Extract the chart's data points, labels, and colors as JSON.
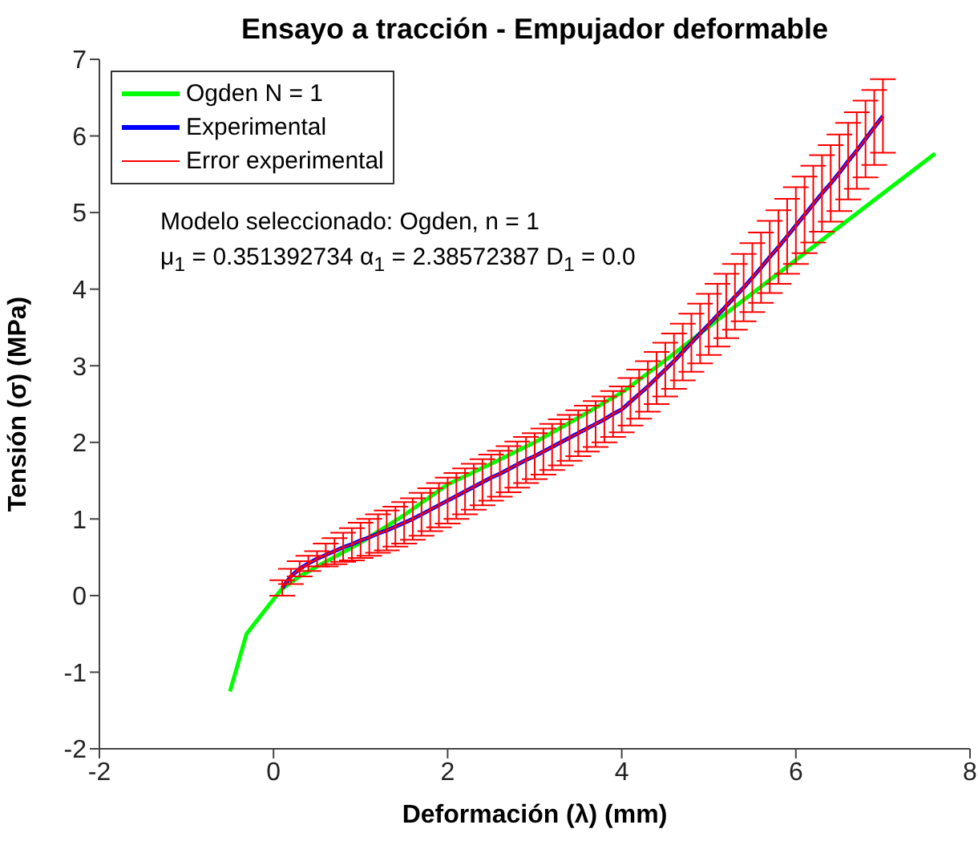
{
  "chart_data": {
    "type": "line",
    "title": "Ensayo a tracción - Empujador deformable",
    "xlabel": "Deformación (λ) (mm)",
    "ylabel": "Tensión (σ) (MPa)",
    "xlim": [
      -2,
      8
    ],
    "xticks": [
      -2,
      0,
      2,
      4,
      6,
      8
    ],
    "ylim": [
      -2,
      7
    ],
    "yticks": [
      -2,
      -1,
      0,
      1,
      2,
      3,
      4,
      5,
      6,
      7
    ],
    "grid": false,
    "legend": "top left",
    "marker": "none",
    "line_style": "solid",
    "annotations": [
      "Modelo seleccionado: Ogden, n = 1",
      "μ$_{1}$ = 0.351392734 α$_{1}$ = 2.38572387 D$_{1}$ = 0.0"
    ],
    "series": [
      {
        "name": "Ogden N = 1",
        "color": "#00ff00",
        "x": [
          -0.5,
          -0.31,
          -0.07,
          0.09,
          0.3,
          0.5,
          1,
          1.5,
          2,
          2.5,
          3,
          3.5,
          4,
          4.5,
          5,
          6,
          7,
          7.6
        ],
        "values": [
          -1.25,
          -0.5,
          -0.15,
          0.08,
          0.25,
          0.38,
          0.69,
          1.05,
          1.45,
          1.72,
          2.0,
          2.32,
          2.65,
          3.07,
          3.51,
          4.38,
          5.25,
          5.77
        ]
      },
      {
        "name": "Experimental",
        "color": "#0000ff",
        "x": [
          0.1,
          0.2,
          0.3,
          0.4,
          0.5,
          0.6,
          0.7,
          0.8,
          0.9,
          1.0,
          1.1,
          1.2,
          1.3,
          1.4,
          1.5,
          1.6,
          1.7,
          1.8,
          1.9,
          2.0,
          2.1,
          2.2,
          2.3,
          2.4,
          2.5,
          2.6,
          2.7,
          2.8,
          2.9,
          3.0,
          3.1,
          3.2,
          3.3,
          3.4,
          3.5,
          3.6,
          3.7,
          3.8,
          3.9,
          4.0,
          4.1,
          4.2,
          4.3,
          4.4,
          4.5,
          4.6,
          4.7,
          4.8,
          4.9,
          5.0,
          5.1,
          5.2,
          5.3,
          5.4,
          5.5,
          5.6,
          5.7,
          5.8,
          5.9,
          6.0,
          6.1,
          6.2,
          6.3,
          6.4,
          6.5,
          6.6,
          6.7,
          6.8,
          6.9,
          7.0
        ],
        "values": [
          0.1,
          0.25,
          0.35,
          0.42,
          0.48,
          0.53,
          0.58,
          0.63,
          0.67,
          0.72,
          0.76,
          0.81,
          0.85,
          0.9,
          0.95,
          1.0,
          1.06,
          1.12,
          1.18,
          1.24,
          1.3,
          1.36,
          1.42,
          1.48,
          1.54,
          1.59,
          1.65,
          1.71,
          1.77,
          1.82,
          1.88,
          1.94,
          2.0,
          2.06,
          2.12,
          2.18,
          2.24,
          2.3,
          2.37,
          2.43,
          2.53,
          2.63,
          2.73,
          2.84,
          2.95,
          3.06,
          3.18,
          3.3,
          3.42,
          3.54,
          3.66,
          3.78,
          3.9,
          4.02,
          4.15,
          4.28,
          4.42,
          4.55,
          4.69,
          4.83,
          4.97,
          5.11,
          5.25,
          5.38,
          5.52,
          5.67,
          5.81,
          5.96,
          6.11,
          6.26
        ]
      },
      {
        "name": "Error experimental",
        "color": "#ff0000",
        "x": [
          0.1,
          0.2,
          0.3,
          0.4,
          0.5,
          0.6,
          0.7,
          0.8,
          0.9,
          1.0,
          1.1,
          1.2,
          1.3,
          1.4,
          1.5,
          1.6,
          1.7,
          1.8,
          1.9,
          2.0,
          2.1,
          2.2,
          2.3,
          2.4,
          2.5,
          2.6,
          2.7,
          2.8,
          2.9,
          3.0,
          3.1,
          3.2,
          3.3,
          3.4,
          3.5,
          3.6,
          3.7,
          3.8,
          3.9,
          4.0,
          4.1,
          4.2,
          4.3,
          4.4,
          4.5,
          4.6,
          4.7,
          4.8,
          4.9,
          5.0,
          5.1,
          5.2,
          5.3,
          5.4,
          5.5,
          5.6,
          5.7,
          5.8,
          5.9,
          6.0,
          6.1,
          6.2,
          6.3,
          6.4,
          6.5,
          6.6,
          6.7,
          6.8,
          6.9,
          7.0
        ],
        "values": [
          0.1,
          0.25,
          0.35,
          0.42,
          0.48,
          0.53,
          0.58,
          0.63,
          0.67,
          0.72,
          0.76,
          0.81,
          0.85,
          0.9,
          0.95,
          1.0,
          1.06,
          1.12,
          1.18,
          1.24,
          1.3,
          1.36,
          1.42,
          1.48,
          1.54,
          1.59,
          1.65,
          1.71,
          1.77,
          1.82,
          1.88,
          1.94,
          2.0,
          2.06,
          2.12,
          2.18,
          2.24,
          2.3,
          2.37,
          2.43,
          2.53,
          2.63,
          2.73,
          2.84,
          2.95,
          3.06,
          3.18,
          3.3,
          3.42,
          3.54,
          3.66,
          3.78,
          3.9,
          4.02,
          4.15,
          4.28,
          4.42,
          4.55,
          4.69,
          4.83,
          4.97,
          5.11,
          5.25,
          5.38,
          5.52,
          5.67,
          5.81,
          5.96,
          6.11,
          6.26
        ],
        "errors": [
          0.1,
          0.1,
          0.1,
          0.1,
          0.1,
          0.15,
          0.17,
          0.19,
          0.21,
          0.23,
          0.24,
          0.25,
          0.26,
          0.26,
          0.27,
          0.27,
          0.28,
          0.28,
          0.29,
          0.3,
          0.3,
          0.3,
          0.3,
          0.3,
          0.3,
          0.3,
          0.3,
          0.3,
          0.3,
          0.3,
          0.3,
          0.3,
          0.3,
          0.3,
          0.3,
          0.3,
          0.3,
          0.3,
          0.3,
          0.3,
          0.31,
          0.32,
          0.33,
          0.34,
          0.35,
          0.36,
          0.37,
          0.38,
          0.39,
          0.4,
          0.41,
          0.42,
          0.43,
          0.44,
          0.45,
          0.46,
          0.47,
          0.48,
          0.49,
          0.5,
          0.5,
          0.5,
          0.5,
          0.5,
          0.5,
          0.5,
          0.5,
          0.5,
          0.49,
          0.48
        ]
      }
    ]
  }
}
